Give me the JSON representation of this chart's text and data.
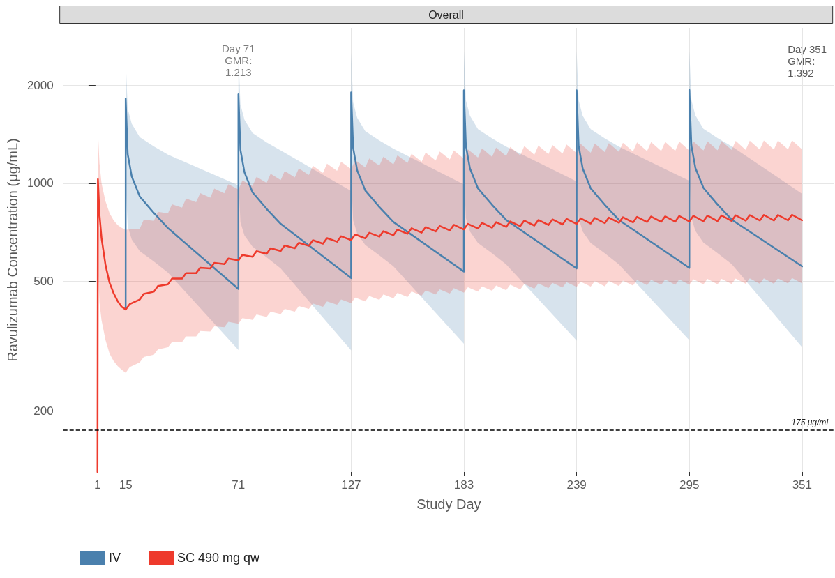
{
  "chart_data": {
    "type": "line",
    "title": "Overall",
    "xlabel": "Study Day",
    "ylabel": "Ravulizumab Concentration (μg/mL)",
    "xlim": [
      -16,
      367
    ],
    "xticks": [
      1,
      15,
      71,
      127,
      183,
      239,
      295,
      351
    ],
    "ylim": [
      130,
      3000
    ],
    "yticks": [
      200,
      500,
      1000,
      2000
    ],
    "log": "y",
    "grid": true,
    "legend": "bottom left",
    "marker": "none",
    "series": [
      {
        "name": "IV",
        "color": "#4a80ad",
        "x": [
          15,
          15,
          16,
          18,
          22,
          29,
          36,
          71,
          71,
          72,
          74,
          78,
          85,
          92,
          127,
          127,
          128,
          130,
          134,
          141,
          148,
          183,
          183,
          184,
          186,
          190,
          197,
          204,
          239,
          239,
          240,
          242,
          246,
          253,
          260,
          295,
          295,
          296,
          298,
          302,
          309,
          316,
          351
        ],
        "values": [
          411,
          1822,
          1230,
          1050,
          911,
          811,
          729,
          474,
          1877,
          1267,
          1081,
          939,
          835,
          751,
          512,
          1902,
          1284,
          1096,
          951,
          846,
          761,
          536,
          1930,
          1303,
          1112,
          965,
          859,
          772,
          548,
          1930,
          1303,
          1112,
          965,
          859,
          772,
          550,
          1935,
          1306,
          1115,
          968,
          861,
          774,
          556
        ],
        "upper": [
          700,
          2405,
          1697,
          1523,
          1385,
          1298,
          1225,
          986,
          2478,
          1748,
          1567,
          1427,
          1336,
          1262,
          947,
          2511,
          1772,
          1589,
          1446,
          1354,
          1278,
          992,
          2548,
          1798,
          1612,
          1467,
          1374,
          1297,
          1014,
          2548,
          1798,
          1612,
          1467,
          1374,
          1297,
          1018,
          2554,
          1802,
          1617,
          1471,
          1378,
          1300,
          929
        ],
        "lower": [
          280,
          1002,
          738,
          672,
          619,
          576,
          532,
          308,
          1032,
          760,
          692,
          639,
          593,
          548,
          307,
          1046,
          770,
          701,
          647,
          601,
          556,
          322,
          1062,
          782,
          712,
          656,
          610,
          564,
          329,
          1062,
          782,
          712,
          656,
          610,
          564,
          330,
          1064,
          784,
          714,
          658,
          611,
          565,
          314
        ]
      },
      {
        "name": "SC 490 mg qw",
        "color": "#ee3a2c",
        "x": [
          1,
          1.2,
          2,
          3,
          5,
          7,
          9,
          11,
          13,
          15,
          17,
          22,
          24,
          29,
          31,
          36,
          38,
          43,
          45,
          50,
          52,
          57,
          59,
          64,
          66,
          71,
          73,
          78,
          80,
          85,
          87,
          92,
          94,
          99,
          101,
          106,
          108,
          113,
          115,
          120,
          122,
          127,
          129,
          134,
          136,
          141,
          143,
          148,
          150,
          155,
          157,
          162,
          164,
          169,
          171,
          176,
          178,
          183,
          185,
          190,
          192,
          197,
          199,
          204,
          206,
          211,
          213,
          218,
          220,
          225,
          227,
          232,
          234,
          239,
          241,
          246,
          248,
          253,
          255,
          260,
          262,
          267,
          269,
          274,
          276,
          281,
          283,
          288,
          290,
          295,
          297,
          302,
          304,
          309,
          311,
          316,
          318,
          323,
          325,
          330,
          332,
          337,
          339,
          344,
          346,
          351
        ],
        "values": [
          130,
          1030,
          800,
          680,
          560,
          495,
          460,
          435,
          418,
          410,
          426,
          440,
          458,
          465,
          484,
          490,
          510,
          510,
          530,
          530,
          551,
          548,
          570,
          565,
          588,
          580,
          603,
          595,
          619,
          608,
          632,
          620,
          645,
          632,
          657,
          643,
          669,
          653,
          679,
          662,
          688,
          670,
          697,
          678,
          705,
          686,
          713,
          693,
          721,
          700,
          728,
          706,
          734,
          712,
          740,
          717,
          746,
          722,
          751,
          727,
          756,
          731,
          760,
          735,
          764,
          739,
          769,
          742,
          772,
          745,
          775,
          748,
          778,
          751,
          781,
          753,
          783,
          755,
          785,
          757,
          787,
          759,
          789,
          761,
          791,
          762,
          792,
          763,
          794,
          764,
          795,
          765,
          796,
          766,
          797,
          767,
          798,
          768,
          799,
          769,
          800,
          769,
          800,
          770,
          801,
          770
        ],
        "upper": [
          130,
          1450,
          1150,
          1000,
          880,
          810,
          770,
          745,
          730,
          720,
          722,
          726,
          774,
          767,
          818,
          809,
          862,
          842,
          898,
          875,
          933,
          904,
          964,
          932,
          994,
          957,
          1021,
          982,
          1047,
          1003,
          1070,
          1023,
          1091,
          1043,
          1112,
          1061,
          1132,
          1077,
          1149,
          1092,
          1165,
          1106,
          1179,
          1119,
          1193,
          1132,
          1207,
          1143,
          1219,
          1155,
          1232,
          1165,
          1243,
          1175,
          1253,
          1183,
          1262,
          1191,
          1271,
          1200,
          1280,
          1206,
          1287,
          1213,
          1294,
          1219,
          1301,
          1224,
          1306,
          1229,
          1311,
          1234,
          1316,
          1239,
          1322,
          1242,
          1325,
          1246,
          1329,
          1249,
          1332,
          1252,
          1336,
          1256,
          1339,
          1257,
          1341,
          1259,
          1343,
          1261,
          1345,
          1262,
          1346,
          1264,
          1348,
          1266,
          1350,
          1267,
          1352,
          1269,
          1353,
          1269,
          1353,
          1271,
          1355,
          1271
        ],
        "lower": [
          130,
          560,
          430,
          380,
          330,
          300,
          285,
          275,
          268,
          262,
          273,
          282,
          293,
          298,
          309,
          314,
          326,
          326,
          339,
          339,
          352,
          351,
          364,
          362,
          376,
          371,
          386,
          381,
          396,
          389,
          404,
          397,
          412,
          404,
          420,
          412,
          428,
          418,
          434,
          424,
          440,
          429,
          446,
          434,
          451,
          439,
          456,
          444,
          461,
          448,
          466,
          452,
          469,
          456,
          473,
          459,
          477,
          462,
          480,
          465,
          483,
          468,
          486,
          470,
          489,
          473,
          491,
          475,
          493,
          477,
          495,
          479,
          497,
          481,
          499,
          482,
          501,
          483,
          502,
          484,
          503,
          486,
          505,
          487,
          506,
          488,
          507,
          488,
          507,
          489,
          508,
          490,
          509,
          490,
          509,
          491,
          510,
          492,
          511,
          492,
          511,
          492,
          511,
          493,
          512,
          493
        ]
      }
    ],
    "ref_lines": [
      {
        "axis": "y",
        "value": 175,
        "label": "175 μg/mL",
        "line_style": "dashed",
        "color": "#000000"
      }
    ],
    "annotations": [
      {
        "text": "Day 71\nGMR:\n1.213",
        "x": 71,
        "y": 2100
      },
      "Day 351\nGMR:\n1.392"
    ]
  }
}
